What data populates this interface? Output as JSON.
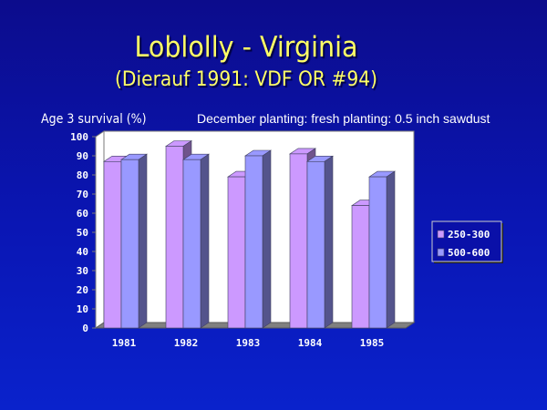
{
  "slide": {
    "title": "Loblolly - Virginia",
    "subtitle": "(Dierauf 1991: VDF OR #94)",
    "note": "December planting: fresh planting: 0.5 inch sawdust"
  },
  "chart_data": {
    "type": "bar",
    "ylabel": "Age 3 survival (%)",
    "xlabel": "",
    "categories": [
      "1981",
      "1982",
      "1983",
      "1984",
      "1985"
    ],
    "series": [
      {
        "name": "250-300",
        "values": [
          87,
          95,
          79,
          91,
          64
        ],
        "color": "#cc99ff"
      },
      {
        "name": "500-600",
        "values": [
          88,
          88,
          90,
          87,
          79
        ],
        "color": "#9999ff"
      }
    ],
    "ylim": [
      0,
      100
    ],
    "yticks": [
      0,
      10,
      20,
      30,
      40,
      50,
      60,
      70,
      80,
      90,
      100
    ],
    "grid": false,
    "legend_position": "right",
    "style": "3d"
  }
}
